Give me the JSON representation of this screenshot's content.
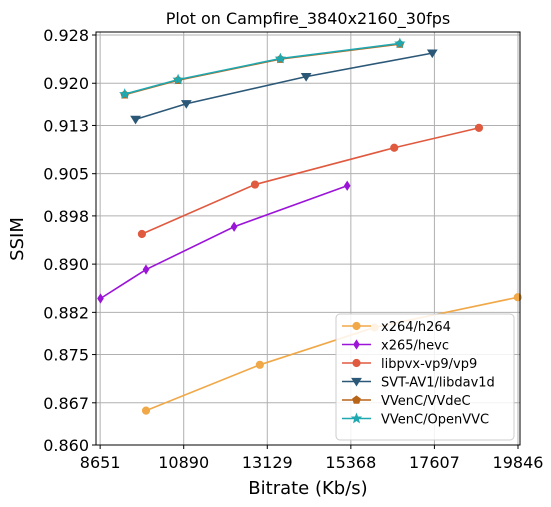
{
  "chart_data": {
    "type": "line",
    "title": "Plot on Campfire_3840x2160_30fps",
    "xlabel": "Bitrate (Kb/s)",
    "ylabel": "SSIM",
    "xlim": [
      8540,
      19900
    ],
    "ylim": [
      0.86,
      0.9285
    ],
    "xticks": [
      8651,
      10890,
      13129,
      15368,
      17607,
      19846
    ],
    "yticks": [
      0.86,
      0.867,
      0.875,
      0.882,
      0.89,
      0.898,
      0.905,
      0.913,
      0.92,
      0.928
    ],
    "ytick_labels": [
      "0.860",
      "0.867",
      "0.875",
      "0.882",
      "0.890",
      "0.898",
      "0.905",
      "0.913",
      "0.920",
      "0.928"
    ],
    "grid": true,
    "legend_position": "lower-right",
    "series": [
      {
        "name": "x264/h264",
        "color": "#f0a848",
        "marker": "circle",
        "x": [
          9880,
          12930,
          16000,
          19840
        ],
        "y": [
          0.8657,
          0.8733,
          0.8795,
          0.8845
        ]
      },
      {
        "name": "x265/hevc",
        "color": "#9b14d8",
        "marker": "diamond",
        "x": [
          8660,
          9880,
          12240,
          15270
        ],
        "y": [
          0.8843,
          0.8891,
          0.8962,
          0.903
        ]
      },
      {
        "name": "libpvx-vp9/vp9",
        "color": "#e05a40",
        "marker": "circle",
        "x": [
          9770,
          12800,
          16530,
          18800
        ],
        "y": [
          0.895,
          0.9032,
          0.9093,
          0.9126
        ]
      },
      {
        "name": "SVT-AV1/libdav1d",
        "color": "#2c5878",
        "marker": "triangle-down",
        "x": [
          9600,
          10960,
          14170,
          17550
        ],
        "y": [
          0.914,
          0.9166,
          0.9211,
          0.925
        ]
      },
      {
        "name": "VVenC/VVdeC",
        "color": "#b86418",
        "marker": "pentagon",
        "x": [
          9310,
          10740,
          13480,
          16680
        ],
        "y": [
          0.9181,
          0.9205,
          0.924,
          0.9265
        ]
      },
      {
        "name": "VVenC/OpenVVC",
        "color": "#1fa8b0",
        "marker": "star",
        "x": [
          9310,
          10740,
          13480,
          16680
        ],
        "y": [
          0.9182,
          0.9206,
          0.9241,
          0.9266
        ]
      }
    ]
  }
}
